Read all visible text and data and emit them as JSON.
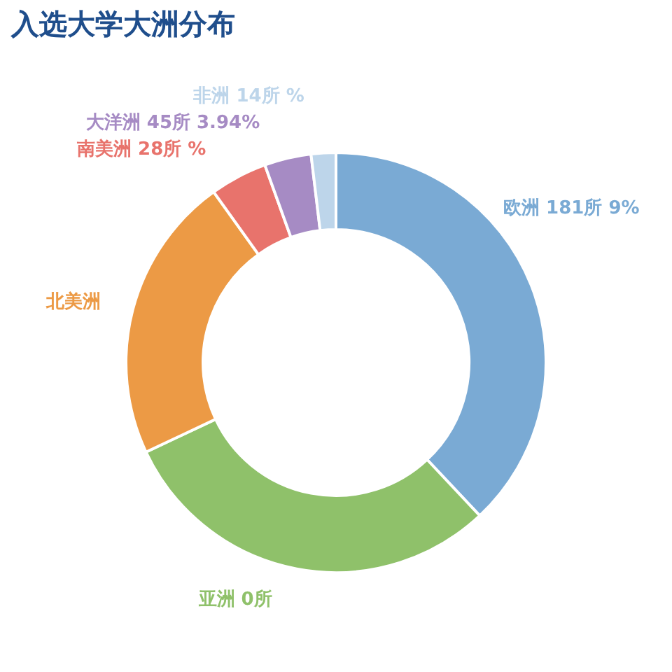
{
  "chart_data": {
    "type": "donut",
    "title": "入选大学大洲分布",
    "categories": [
      "欧洲",
      "亚洲",
      "北美洲",
      "南美洲",
      "大洋洲",
      "非洲"
    ],
    "values": [
      38,
      30,
      22.1,
      4.4,
      3.6,
      1.9
    ],
    "colors": [
      "#7aaad4",
      "#8fc16a",
      "#ec9a45",
      "#e8736c",
      "#a68bc4",
      "#bdd5ea"
    ],
    "annotations": [
      {
        "text": "181所 9%",
        "x": "欧洲"
      },
      {
        "text": "0所",
        "x": "亚洲"
      },
      {
        "text": "28所 %",
        "x": "南美洲"
      },
      {
        "text": "45所 3.94%",
        "x": "大洋洲"
      },
      {
        "text": "14所 %",
        "x": "非洲"
      }
    ]
  }
}
